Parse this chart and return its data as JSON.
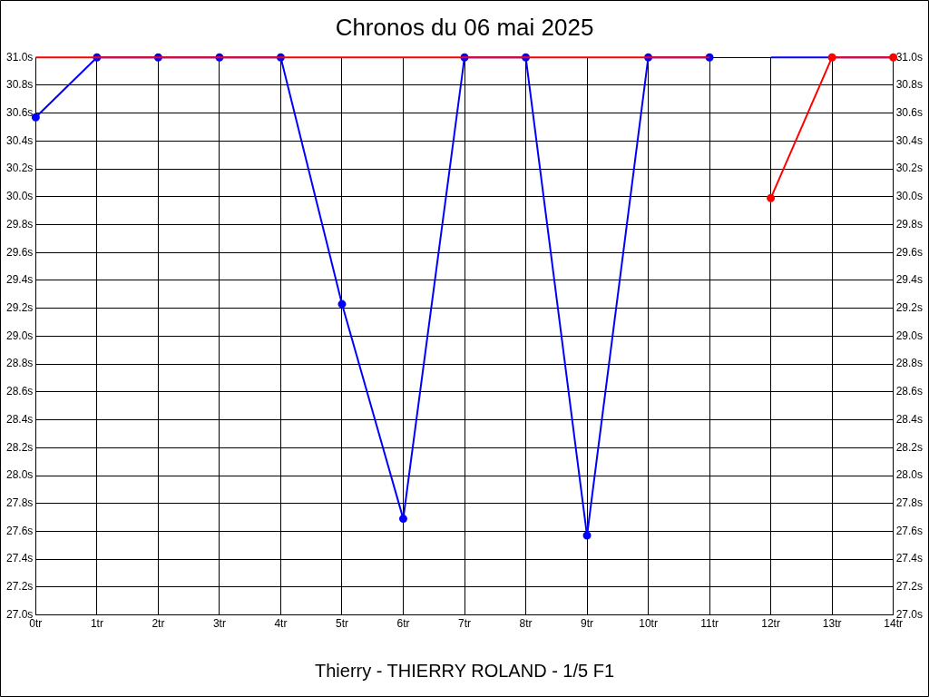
{
  "chart_data": {
    "type": "line",
    "title": "Chronos du 06 mai 2025",
    "xlabel": "Thierry - THIERRY ROLAND - 1/5 F1",
    "xlim": [
      0,
      14
    ],
    "xticks": [
      {
        "value": 0,
        "label": "0tr"
      },
      {
        "value": 1,
        "label": "1tr"
      },
      {
        "value": 2,
        "label": "2tr"
      },
      {
        "value": 3,
        "label": "3tr"
      },
      {
        "value": 4,
        "label": "4tr"
      },
      {
        "value": 5,
        "label": "5tr"
      },
      {
        "value": 6,
        "label": "6tr"
      },
      {
        "value": 7,
        "label": "7tr"
      },
      {
        "value": 8,
        "label": "8tr"
      },
      {
        "value": 9,
        "label": "9tr"
      },
      {
        "value": 10,
        "label": "10tr"
      },
      {
        "value": 11,
        "label": "11tr"
      },
      {
        "value": 12,
        "label": "12tr"
      },
      {
        "value": 13,
        "label": "13tr"
      },
      {
        "value": 14,
        "label": "14tr"
      }
    ],
    "ylim": [
      27.0,
      31.0
    ],
    "yticks": [
      {
        "value": 27.0,
        "label": "27.0s"
      },
      {
        "value": 27.2,
        "label": "27.2s"
      },
      {
        "value": 27.4,
        "label": "27.4s"
      },
      {
        "value": 27.6,
        "label": "27.6s"
      },
      {
        "value": 27.8,
        "label": "27.8s"
      },
      {
        "value": 28.0,
        "label": "28.0s"
      },
      {
        "value": 28.2,
        "label": "28.2s"
      },
      {
        "value": 28.4,
        "label": "28.4s"
      },
      {
        "value": 28.6,
        "label": "28.6s"
      },
      {
        "value": 28.8,
        "label": "28.8s"
      },
      {
        "value": 29.0,
        "label": "29.0s"
      },
      {
        "value": 29.2,
        "label": "29.2s"
      },
      {
        "value": 29.4,
        "label": "29.4s"
      },
      {
        "value": 29.6,
        "label": "29.6s"
      },
      {
        "value": 29.8,
        "label": "29.8s"
      },
      {
        "value": 30.0,
        "label": "30.0s"
      },
      {
        "value": 30.2,
        "label": "30.2s"
      },
      {
        "value": 30.4,
        "label": "30.4s"
      },
      {
        "value": 30.6,
        "label": "30.6s"
      },
      {
        "value": 30.8,
        "label": "30.8s"
      },
      {
        "value": 31.0,
        "label": "31.0s"
      }
    ],
    "y2lim": [
      27.0,
      31.0
    ],
    "y2ticks": [
      {
        "value": 27.0,
        "label": "27.0s"
      },
      {
        "value": 27.2,
        "label": "27.2s"
      },
      {
        "value": 27.4,
        "label": "27.4s"
      },
      {
        "value": 27.6,
        "label": "27.6s"
      },
      {
        "value": 27.8,
        "label": "27.8s"
      },
      {
        "value": 28.0,
        "label": "28.0s"
      },
      {
        "value": 28.2,
        "label": "28.2s"
      },
      {
        "value": 28.4,
        "label": "28.4s"
      },
      {
        "value": 28.6,
        "label": "28.6s"
      },
      {
        "value": 28.8,
        "label": "28.8s"
      },
      {
        "value": 29.0,
        "label": "29.0s"
      },
      {
        "value": 29.2,
        "label": "29.2s"
      },
      {
        "value": 29.4,
        "label": "29.4s"
      },
      {
        "value": 29.6,
        "label": "29.6s"
      },
      {
        "value": 29.8,
        "label": "29.8s"
      },
      {
        "value": 30.0,
        "label": "30.0s"
      },
      {
        "value": 30.2,
        "label": "30.2s"
      },
      {
        "value": 30.4,
        "label": "30.4s"
      },
      {
        "value": 30.6,
        "label": "30.6s"
      },
      {
        "value": 30.8,
        "label": "30.8s"
      },
      {
        "value": 31.0,
        "label": "31.0s"
      }
    ],
    "grid": true,
    "legend": false,
    "line_style": "solid",
    "series": [
      {
        "color": "#ff0000",
        "marker": "none",
        "x": [
          0,
          1,
          2,
          3,
          4,
          5,
          6,
          7,
          8,
          9,
          10,
          11
        ],
        "values": [
          31.0,
          31.0,
          31.0,
          31.0,
          31.0,
          31.0,
          31.0,
          31.0,
          31.0,
          31.0,
          31.0,
          31.0
        ]
      },
      {
        "color": "#ff0000",
        "marker": "circle",
        "x": [
          12,
          13,
          14
        ],
        "values": [
          29.99,
          31.0,
          31.0
        ]
      },
      {
        "color": "#0000ff",
        "marker": "circle",
        "x": [
          0,
          1,
          2,
          3,
          4,
          5,
          6,
          7,
          8,
          9,
          10,
          11
        ],
        "values": [
          30.57,
          31.0,
          31.0,
          31.0,
          31.0,
          29.23,
          27.69,
          31.0,
          31.0,
          27.57,
          31.0,
          31.0
        ]
      },
      {
        "color": "#0000ff",
        "marker": "none",
        "x": [
          12,
          13,
          14
        ],
        "values": [
          31.0,
          31.0,
          31.0
        ]
      }
    ]
  }
}
